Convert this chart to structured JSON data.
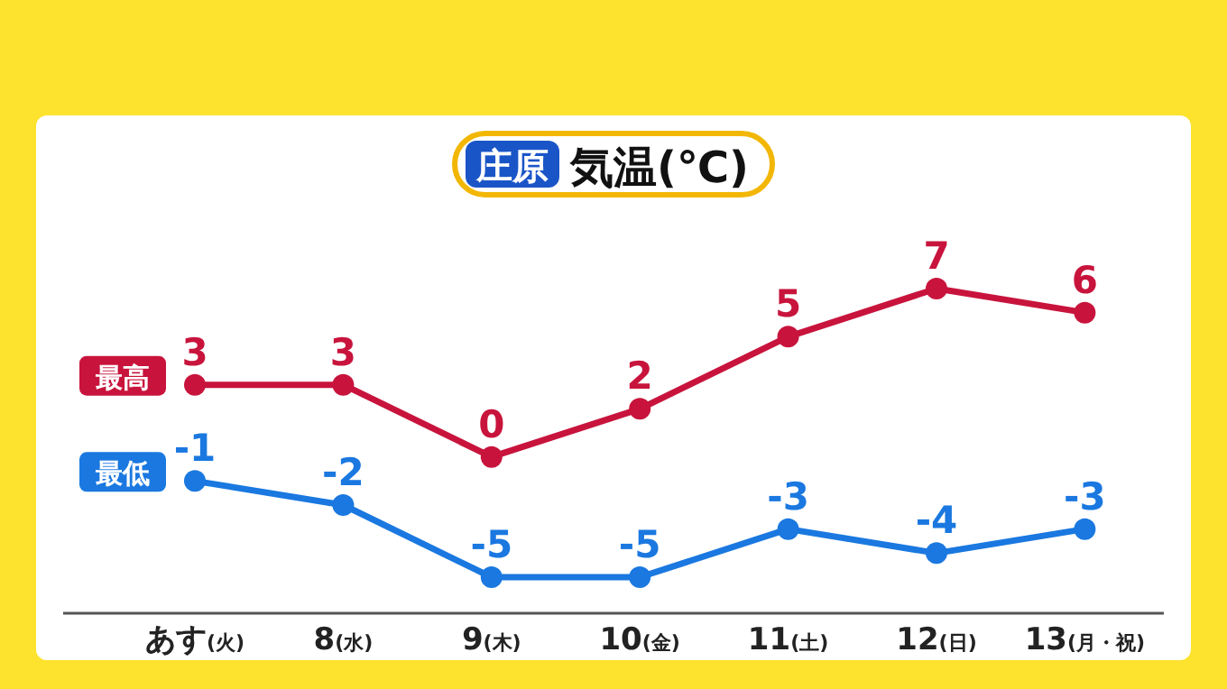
{
  "chart_data": {
    "type": "line",
    "title": "庄原 気温(℃)",
    "categories": [
      "あす(火)",
      "8(水)",
      "9(木)",
      "10(金)",
      "11(土)",
      "12(日)",
      "13(月・祝)"
    ],
    "series": [
      {
        "name": "最高",
        "color": "#c8143c",
        "values": [
          3,
          3,
          0,
          2,
          5,
          7,
          6
        ]
      },
      {
        "name": "最低",
        "color": "#1a78e0",
        "values": [
          -1,
          -2,
          -5,
          -5,
          -3,
          -4,
          -3
        ]
      }
    ],
    "data_labels": true,
    "marker": "circle",
    "line_style": "solid"
  }
}
